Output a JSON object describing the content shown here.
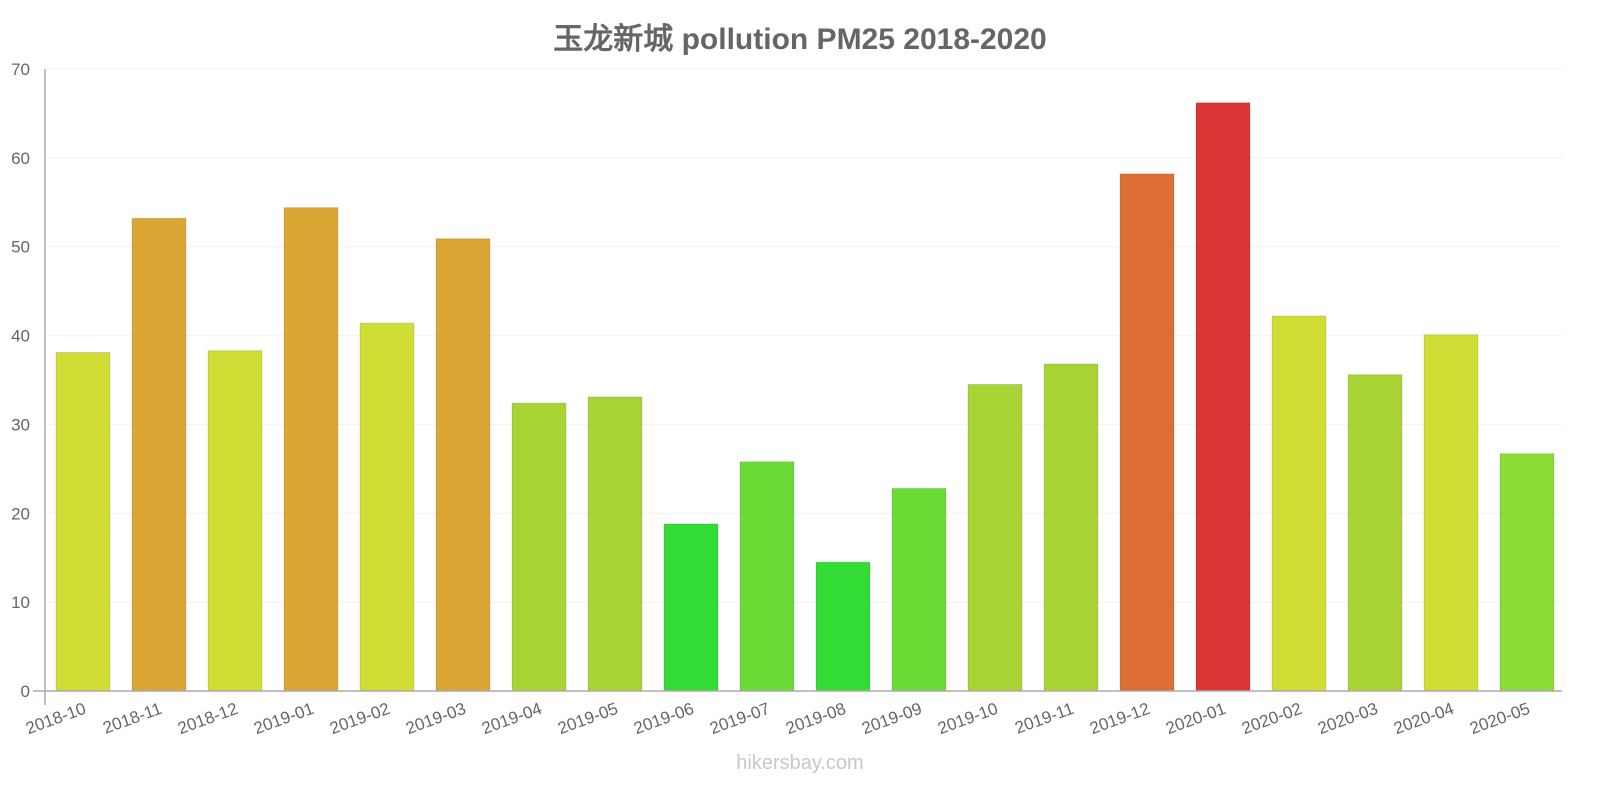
{
  "chart_data": {
    "type": "bar",
    "title": "玉龙新城 pollution PM25 2018-2020",
    "xlabel": "",
    "ylabel": "",
    "ylim": [
      0,
      70
    ],
    "yticks": [
      0,
      10,
      20,
      30,
      40,
      50,
      60,
      70
    ],
    "grid": true,
    "legend": null,
    "categories": [
      "2018-10",
      "2018-11",
      "2018-12",
      "2019-01",
      "2019-02",
      "2019-03",
      "2019-04",
      "2019-05",
      "2019-06",
      "2019-07",
      "2019-08",
      "2019-09",
      "2019-10",
      "2019-11",
      "2019-12",
      "2020-01",
      "2020-02",
      "2020-03",
      "2020-04",
      "2020-05"
    ],
    "values": [
      38.1,
      53.2,
      38.3,
      54.4,
      41.4,
      50.9,
      32.4,
      33.1,
      18.8,
      25.8,
      14.5,
      22.8,
      34.5,
      36.8,
      58.2,
      66.2,
      42.2,
      35.6,
      40.1,
      26.7
    ],
    "colors": [
      "#cfdd35",
      "#dba734",
      "#cfdd35",
      "#dba734",
      "#cfdd35",
      "#dba734",
      "#a8d535",
      "#a8d535",
      "#34dc36",
      "#6bdc36",
      "#34dc36",
      "#6bdc36",
      "#a8d535",
      "#a8d535",
      "#dd6f35",
      "#da3636",
      "#cfdd35",
      "#a8d535",
      "#cfdd35",
      "#8bdc36"
    ]
  },
  "watermark": "hikersbay.com"
}
